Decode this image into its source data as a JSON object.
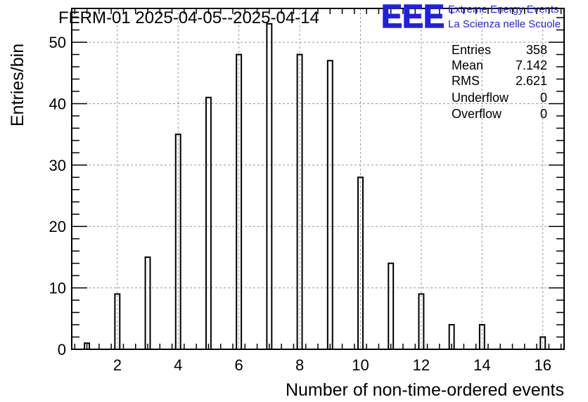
{
  "chart_data": {
    "type": "bar",
    "title": "FERM-01 2025-04-05--2025-04-14",
    "xlabel": "Number of non-time-ordered events",
    "ylabel": "Entries/bin",
    "xlim": [
      0.5,
      16.7
    ],
    "ylim": [
      0,
      55.5
    ],
    "x_ticks": [
      "2",
      "4",
      "6",
      "8",
      "10",
      "12",
      "14",
      "16"
    ],
    "y_ticks": [
      "0",
      "10",
      "20",
      "30",
      "40",
      "50"
    ],
    "grid": true,
    "series": [
      {
        "x": [
          1,
          2,
          3,
          4,
          5,
          6,
          7,
          8,
          9,
          10,
          11,
          12,
          13,
          14,
          15,
          16
        ],
        "values": [
          1,
          9,
          15,
          35,
          41,
          48,
          53,
          48,
          47,
          28,
          14,
          9,
          4,
          4,
          0,
          2
        ]
      }
    ],
    "stats_box": {
      "rows": [
        {
          "label": "Entries",
          "value": "358"
        },
        {
          "label": "Mean",
          "value": "7.142"
        },
        {
          "label": "RMS",
          "value": "2.621"
        },
        {
          "label": "Underflow",
          "value": "0"
        },
        {
          "label": "Overflow",
          "value": "0"
        }
      ]
    }
  },
  "logo": {
    "mark": "EEE",
    "line1": "Extreme Energy Events",
    "line2": "La Scienza nelle Scuole",
    "color": "#1f1fe6"
  }
}
